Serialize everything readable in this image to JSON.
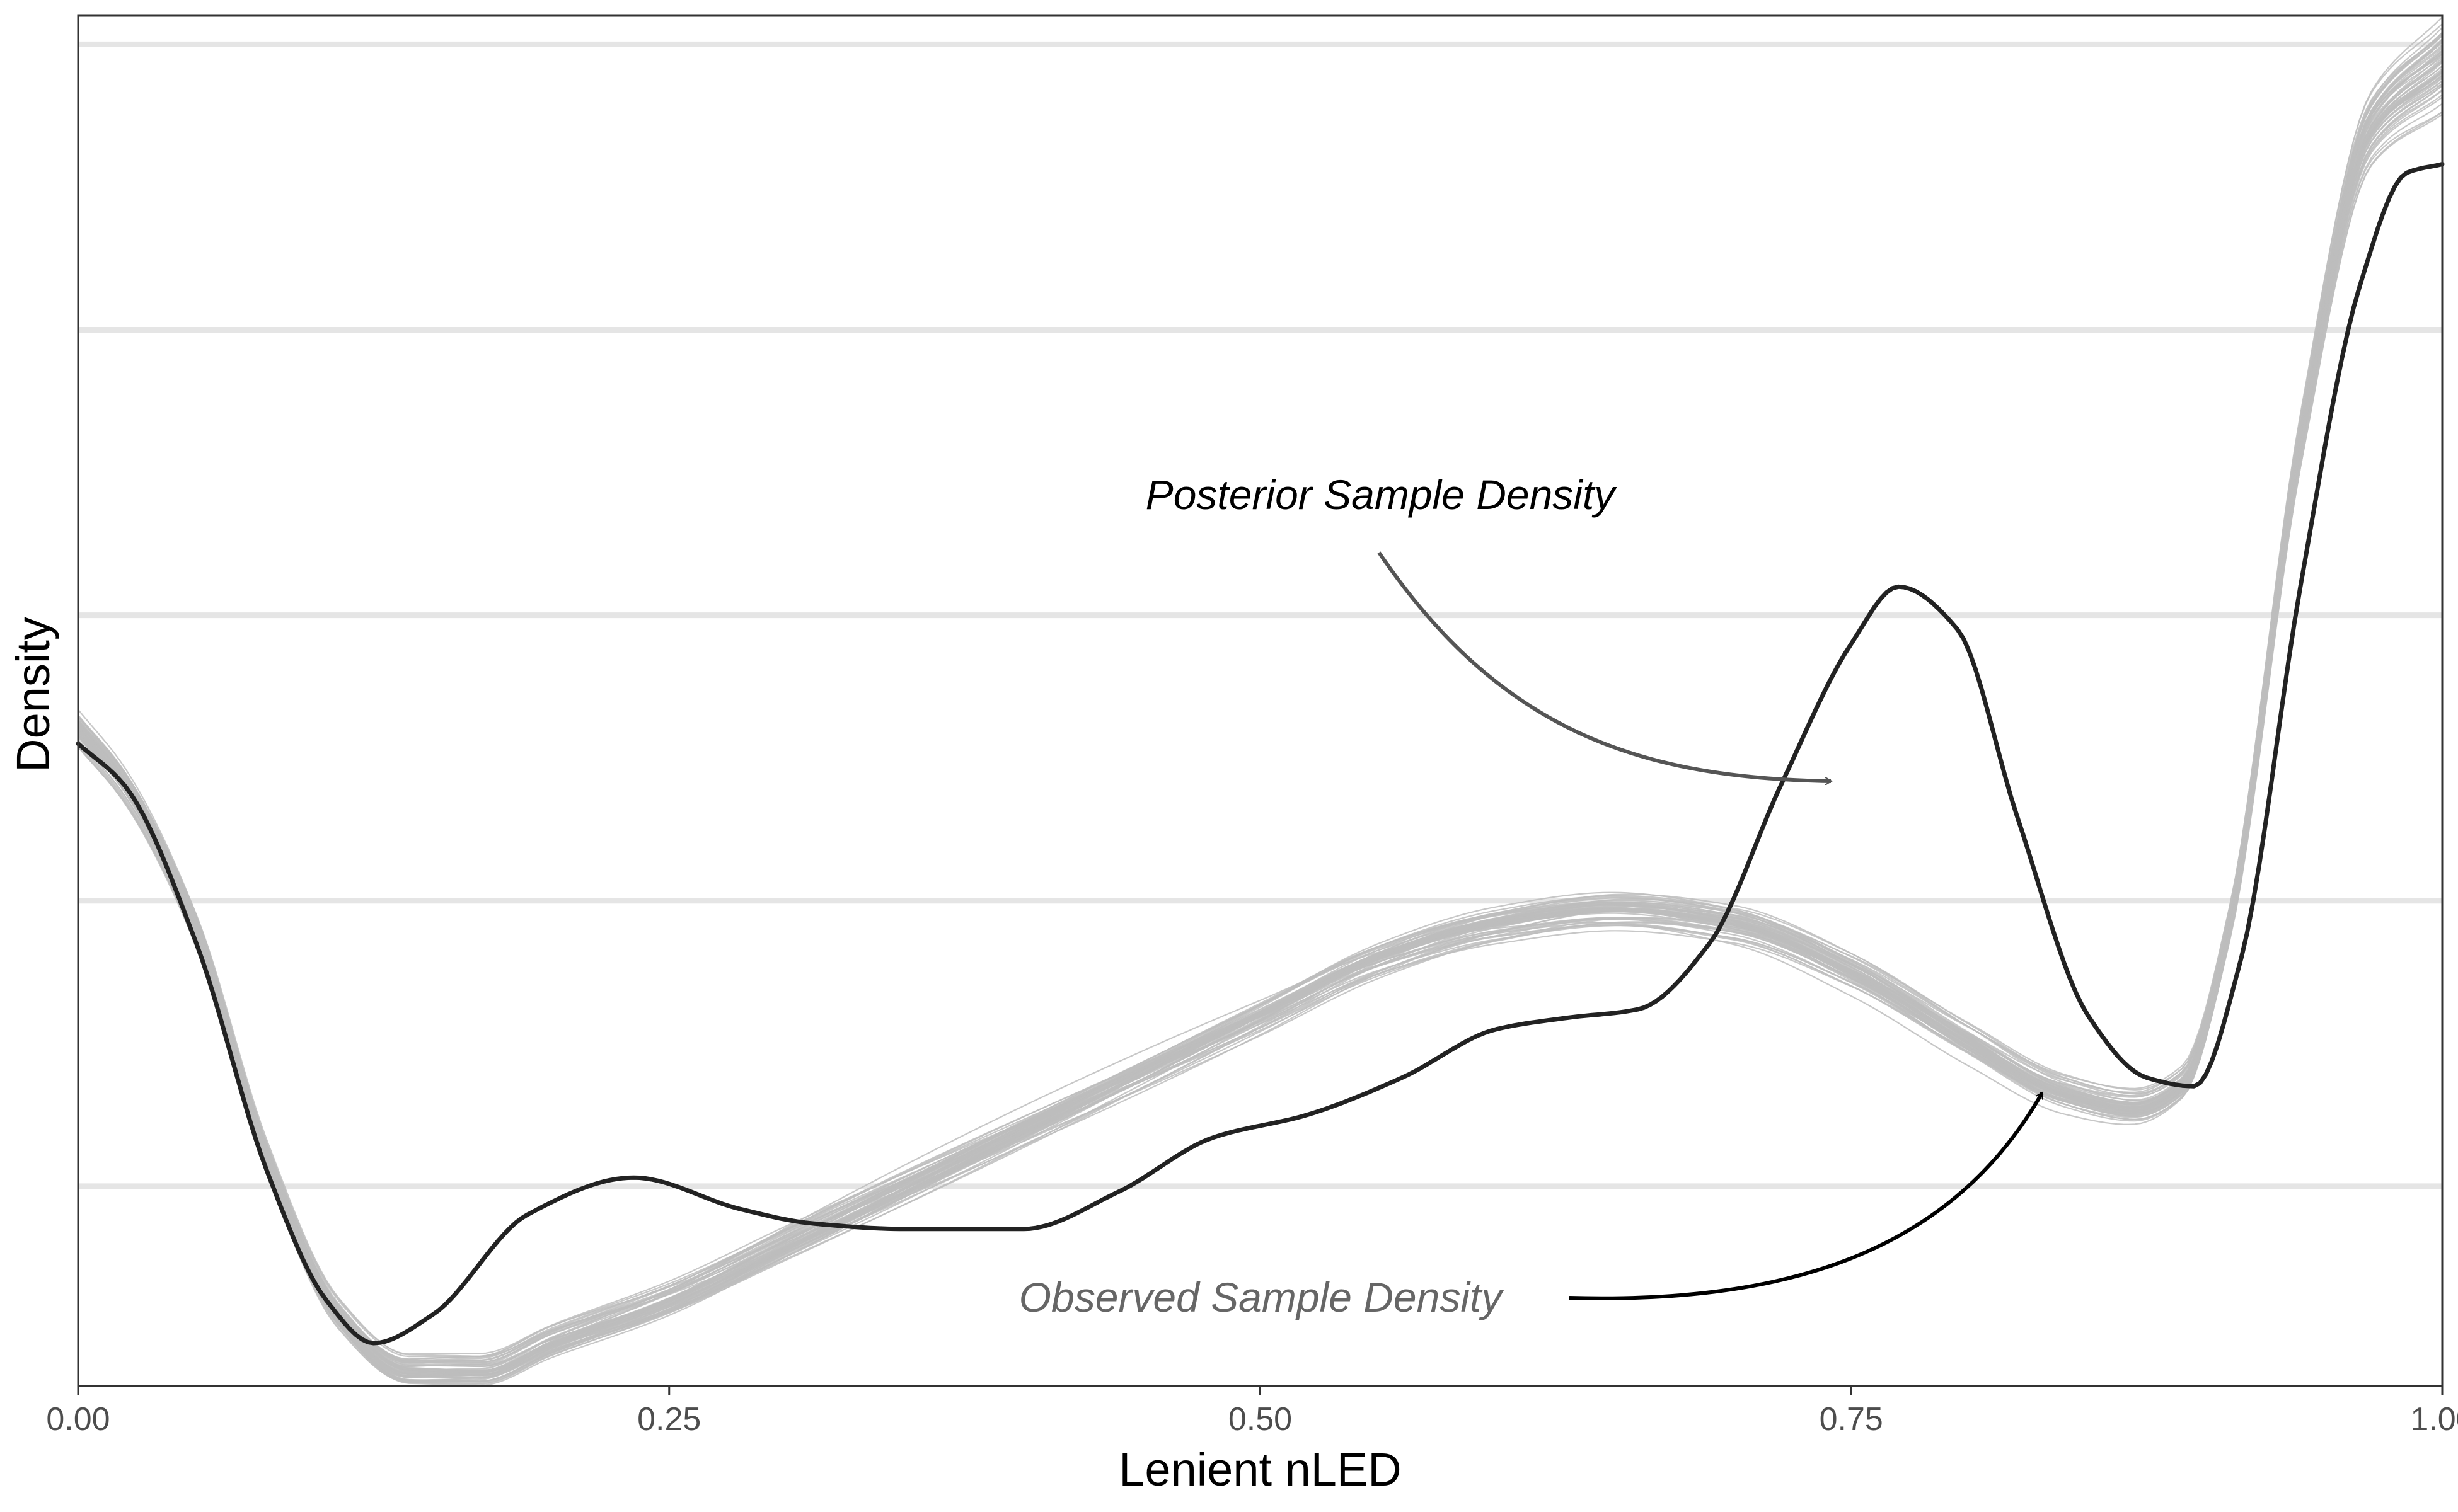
{
  "chart_data": {
    "type": "line",
    "title": "",
    "xlabel": "Lenient nLED",
    "ylabel": "Density",
    "xlim": [
      0,
      1
    ],
    "ylim": [
      0,
      4.8
    ],
    "x_ticks": [
      0,
      0.25,
      0.5,
      0.75,
      1
    ],
    "x_tick_labels": [
      "0.00",
      "0.25",
      "0.50",
      "0.75",
      "1.00"
    ],
    "y_gridlines": [
      0.7,
      1.7,
      2.7,
      3.7,
      4.7
    ],
    "y_tick_labels_shown": false,
    "grid": {
      "horizontal": true,
      "vertical": false
    },
    "colors": {
      "observed": "#222222",
      "posterior": "#bdbdbd",
      "grid": "#e5e5e5",
      "border": "#333333",
      "annotation_posterior_arrow": "#555555",
      "annotation_observed_text": "#666666"
    },
    "series": [
      {
        "role": "observed",
        "x": [
          0.0,
          0.02,
          0.05,
          0.08,
          0.105,
          0.125,
          0.15,
          0.19,
          0.235,
          0.28,
          0.31,
          0.35,
          0.4,
          0.44,
          0.48,
          0.52,
          0.56,
          0.6,
          0.63,
          0.66,
          0.69,
          0.72,
          0.75,
          0.77,
          0.795,
          0.82,
          0.85,
          0.875,
          0.895,
          0.915,
          0.94,
          0.965,
          0.985,
          1.0
        ],
        "y": [
          2.25,
          2.1,
          1.55,
          0.75,
          0.3,
          0.15,
          0.25,
          0.6,
          0.73,
          0.62,
          0.57,
          0.55,
          0.55,
          0.68,
          0.87,
          0.95,
          1.08,
          1.25,
          1.29,
          1.32,
          1.55,
          2.1,
          2.6,
          2.8,
          2.65,
          2.0,
          1.3,
          1.08,
          1.05,
          1.5,
          2.8,
          3.85,
          4.25,
          4.28
        ]
      },
      {
        "role": "posterior-mean",
        "x": [
          0.0,
          0.02,
          0.05,
          0.08,
          0.11,
          0.14,
          0.17,
          0.2,
          0.25,
          0.3,
          0.35,
          0.4,
          0.45,
          0.5,
          0.55,
          0.6,
          0.65,
          0.7,
          0.75,
          0.8,
          0.84,
          0.87,
          0.89,
          0.91,
          0.94,
          0.97,
          1.0
        ],
        "y": [
          2.3,
          2.1,
          1.6,
          0.8,
          0.25,
          0.05,
          0.05,
          0.15,
          0.3,
          0.5,
          0.7,
          0.9,
          1.1,
          1.3,
          1.5,
          1.62,
          1.67,
          1.62,
          1.45,
          1.2,
          1.02,
          0.97,
          1.05,
          1.6,
          3.3,
          4.4,
          4.62
        ]
      }
    ],
    "posterior_draws_count": 60,
    "annotations": [
      {
        "text": "Posterior Sample Density",
        "role": "posterior-label"
      },
      {
        "text": "Observed Sample Density",
        "role": "observed-label"
      }
    ]
  }
}
